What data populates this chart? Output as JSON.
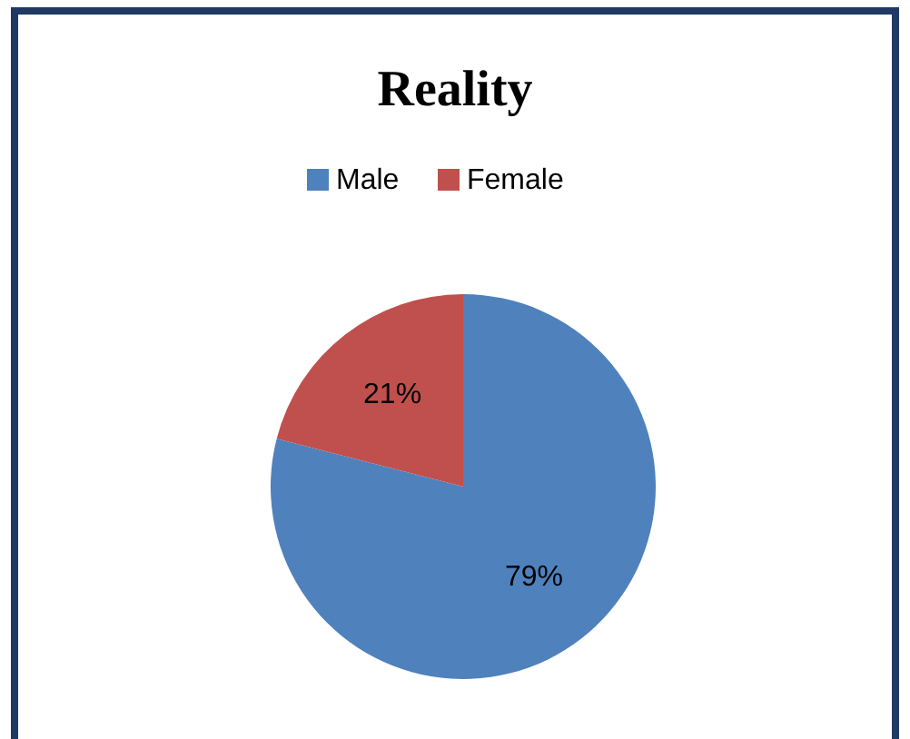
{
  "chart_data": {
    "type": "pie",
    "title": "Reality",
    "categories": [
      "Male",
      "Female"
    ],
    "values": [
      79,
      21
    ],
    "colors": [
      "#4f81bd",
      "#c0504d"
    ],
    "value_labels": [
      "79%",
      "21%"
    ],
    "legend": "top"
  }
}
